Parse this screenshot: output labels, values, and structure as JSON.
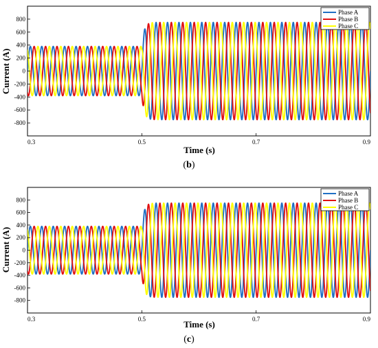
{
  "panels": [
    {
      "caption_prefix": "(",
      "caption_letter": "b",
      "caption_suffix": ")"
    },
    {
      "caption_prefix": "(",
      "caption_letter": "c",
      "caption_suffix": ")"
    }
  ],
  "chart_data": [
    {
      "type": "line",
      "title": "",
      "xlabel": "Time (s)",
      "ylabel": "Current (A)",
      "xlim": [
        0.3,
        0.9
      ],
      "ylim": [
        -1000,
        1000
      ],
      "xticks": [
        0.3,
        0.5,
        0.7,
        0.9
      ],
      "xtick_labels": [
        "0.3",
        "0.5",
        "0.7",
        "0.9"
      ],
      "yticks": [
        -800,
        -600,
        -400,
        -200,
        0,
        200,
        400,
        600,
        800
      ],
      "ytick_labels": [
        "-800",
        "-600",
        "-400",
        "-200",
        "0",
        "200",
        "400",
        "600",
        "800"
      ],
      "grid": false,
      "legend_position": "top-right",
      "frequency_hz": 50,
      "step_time": 0.5,
      "amplitude_before": 380,
      "amplitude_after": 750,
      "series": [
        {
          "name": "Phase A",
          "color": "#1f6fc4",
          "phase_deg": 0
        },
        {
          "name": "Phase B",
          "color": "#e01010",
          "phase_deg": -120
        },
        {
          "name": "Phase C",
          "color": "#ffff00",
          "phase_deg": 120
        }
      ]
    },
    {
      "type": "line",
      "title": "",
      "xlabel": "Time (s)",
      "ylabel": "Current (A)",
      "xlim": [
        0.3,
        0.9
      ],
      "ylim": [
        -1000,
        1000
      ],
      "xticks": [
        0.3,
        0.5,
        0.7,
        0.9
      ],
      "xtick_labels": [
        "0.3",
        "0.5",
        "0.7",
        "0.9"
      ],
      "yticks": [
        -800,
        -600,
        -400,
        -200,
        0,
        200,
        400,
        600,
        800
      ],
      "ytick_labels": [
        "-800",
        "-600",
        "-400",
        "-200",
        "0",
        "200",
        "400",
        "600",
        "800"
      ],
      "grid": false,
      "legend_position": "top-right",
      "frequency_hz": 50,
      "step_time": 0.5,
      "amplitude_before": 380,
      "amplitude_after": 750,
      "series": [
        {
          "name": "Phase A",
          "color": "#1f6fc4",
          "phase_deg": 0
        },
        {
          "name": "Phase B",
          "color": "#e01010",
          "phase_deg": -120
        },
        {
          "name": "Phase C",
          "color": "#ffff00",
          "phase_deg": 120
        }
      ]
    }
  ]
}
